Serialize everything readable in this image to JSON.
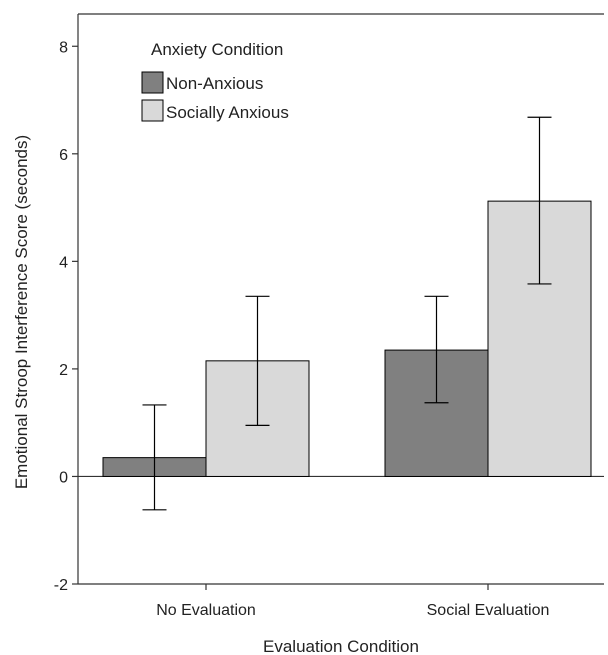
{
  "chart_data": {
    "type": "bar",
    "categories": [
      "No Evaluation",
      "Social Evaluation"
    ],
    "series": [
      {
        "name": "Non-Anxious",
        "color": "#808080",
        "values": [
          0.35,
          2.35
        ],
        "error_low": [
          -0.62,
          1.37
        ],
        "error_high": [
          1.33,
          3.35
        ]
      },
      {
        "name": "Socially Anxious",
        "color": "#d9d9d9",
        "values": [
          2.15,
          5.12
        ],
        "error_low": [
          0.95,
          3.58
        ],
        "error_high": [
          3.35,
          6.68
        ]
      }
    ],
    "xlabel": "Evaluation Condition",
    "ylabel": "Emotional Stroop Interference Score (seconds)",
    "ylim": [
      -2,
      8.6
    ],
    "yticks": [
      -2,
      0,
      2,
      4,
      6,
      8
    ],
    "ytick_labels": [
      "-2",
      "0",
      "2",
      "4",
      "6",
      "8"
    ],
    "legend": {
      "title": "Anxiety Condition",
      "placement": "top-left",
      "entries": [
        "Non-Anxious",
        "Socially Anxious"
      ]
    },
    "grid": false,
    "zero_line": true
  }
}
